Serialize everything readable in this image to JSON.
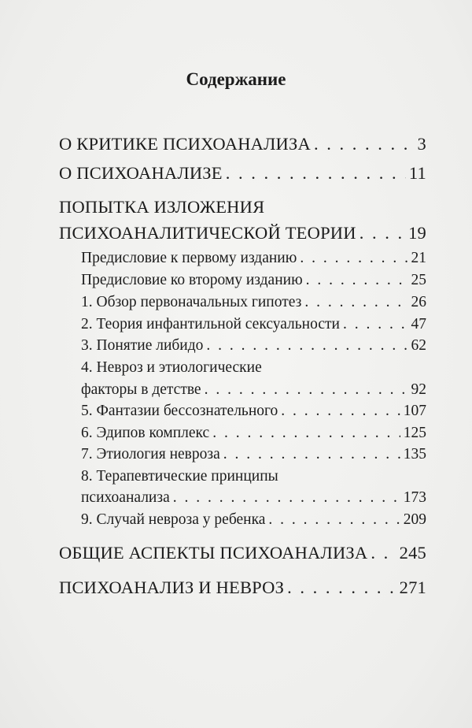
{
  "title": "Содержание",
  "entries": [
    {
      "lines": [
        "О КРИТИКЕ ПСИХОАНАЛИЗА"
      ],
      "page": "3"
    },
    {
      "lines": [
        "О ПСИХОАНАЛИЗЕ"
      ],
      "page": "11"
    },
    {
      "lines": [
        "ПОПЫТКА ИЗЛОЖЕНИЯ",
        "ПСИХОАНАЛИТИЧЕСКОЙ ТЕОРИИ"
      ],
      "page": "19"
    },
    {
      "lines": [
        "Предисловие к первому изданию"
      ],
      "page": "21"
    },
    {
      "lines": [
        "Предисловие ко второму изданию"
      ],
      "page": "25"
    },
    {
      "lines": [
        "1. Обзор первоначальных гипотез"
      ],
      "page": "26"
    },
    {
      "lines": [
        "2. Теория инфантильной сексуальности"
      ],
      "page": "47"
    },
    {
      "lines": [
        "3. Понятие либидо"
      ],
      "page": "62"
    },
    {
      "lines": [
        "4. Невроз и этиологические",
        "факторы в детстве"
      ],
      "page": "92"
    },
    {
      "lines": [
        "5. Фантазии бессознательного"
      ],
      "page": "107"
    },
    {
      "lines": [
        "6. Эдипов комплекс"
      ],
      "page": "125"
    },
    {
      "lines": [
        "7. Этиология невроза"
      ],
      "page": "135"
    },
    {
      "lines": [
        "8. Терапевтические принципы",
        "психоанализа"
      ],
      "page": "173"
    },
    {
      "lines": [
        "9. Случай невроза у ребенка"
      ],
      "page": "209"
    },
    {
      "lines": [
        "ОБЩИЕ АСПЕКТЫ ПСИХОАНАЛИЗА"
      ],
      "page": "245"
    },
    {
      "lines": [
        "ПСИХОАНАЛИЗ И НЕВРОЗ"
      ],
      "page": "271"
    }
  ]
}
